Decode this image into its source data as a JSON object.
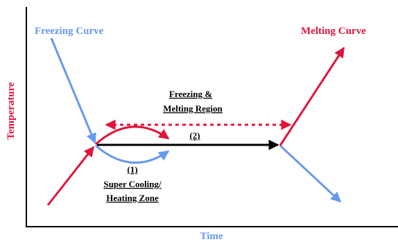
{
  "labels": {
    "freezing_curve": "Freezing Curve",
    "melting_curve": "Melting Curve",
    "region_line1": "Freezing &",
    "region_line2": "Melting Region",
    "path_2": "(2)",
    "path_1": "(1)",
    "zone_line1": "Super Cooling/",
    "zone_line2": "Heating Zone",
    "y_axis": "Temperature",
    "x_axis": "Time"
  },
  "colors": {
    "freezing": "#6699ee",
    "melting": "#e0143c",
    "axis": "#000000",
    "path_2": "#000000"
  }
}
